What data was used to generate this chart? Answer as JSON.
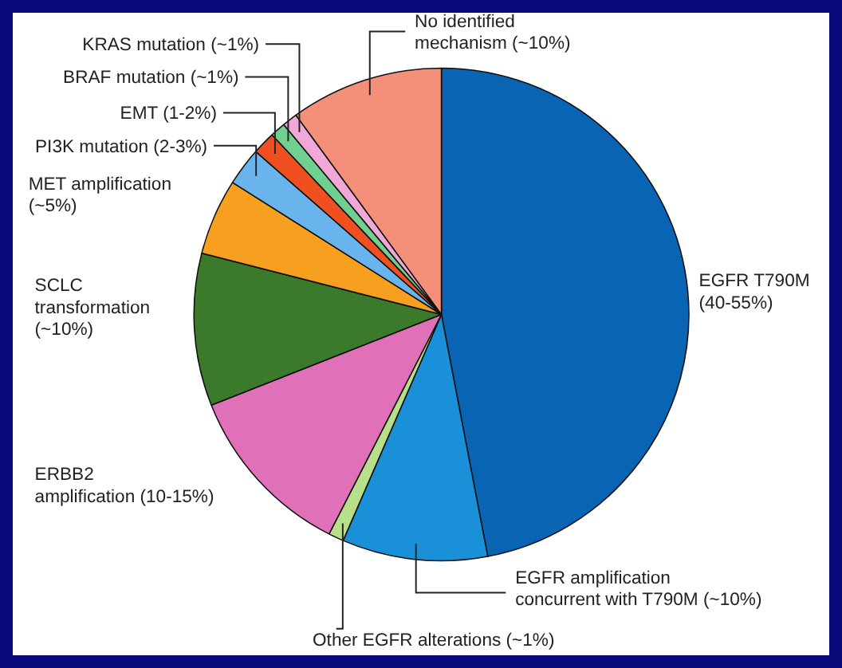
{
  "chart_data": {
    "type": "pie",
    "categories": [
      "EGFR T790M\n(40-55%)",
      "EGFR amplification\nconcurrent with T790M (~10%)",
      "Other EGFR alterations (~1%)",
      "ERBB2\namplification (10-15%)",
      "SCLC\ntransformation\n(~10%)",
      "MET amplification\n(~5%)",
      "PI3K mutation (2-3%)",
      "EMT (1-2%)",
      "BRAF mutation (~1%)",
      "KRAS mutation (~1%)",
      "No identified\nmechanism (~10%)"
    ],
    "values": [
      47,
      9.5,
      1,
      11.5,
      10,
      5,
      2.5,
      1.5,
      1,
      1,
      10
    ],
    "colors": [
      "#0a64b4",
      "#1a90d8",
      "#b8e08a",
      "#e070b8",
      "#3a7a2a",
      "#f7a020",
      "#6ab4ee",
      "#f05020",
      "#70d090",
      "#f0a8d8",
      "#f4907a"
    ]
  }
}
